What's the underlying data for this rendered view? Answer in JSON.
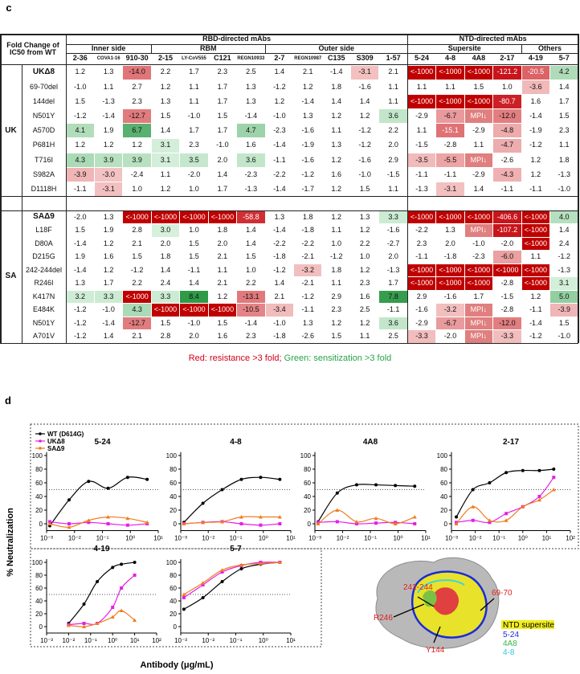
{
  "panel_c": {
    "label": "c",
    "corner": "Fold Change of IC50 from WT",
    "groups": [
      {
        "name": "RBD-directed mAbs",
        "subgroups": [
          {
            "name": "Inner side",
            "columns": [
              "2-36",
              "COVA1-16",
              "910-30"
            ]
          },
          {
            "name": "RBM",
            "columns": [
              "2-15",
              "LY-CoV555",
              "C121",
              "REGN10933"
            ]
          },
          {
            "name": "Outer side",
            "columns": [
              "2-7",
              "REGN10987",
              "C135",
              "S309",
              "1-57"
            ]
          }
        ]
      },
      {
        "name": "NTD-directed mAbs",
        "subgroups": [
          {
            "name": "Supersite",
            "columns": [
              "5-24",
              "4-8",
              "4A8",
              "2-17"
            ]
          },
          {
            "name": "Others",
            "columns": [
              "4-19",
              "5-7"
            ]
          }
        ]
      }
    ],
    "blocks": [
      {
        "name": "UK",
        "rows": [
          {
            "label": "UKΔ8",
            "cells": [
              "1.2",
              "1.3",
              "-14.0",
              "2.2",
              "1.7",
              "2.3",
              "2.5",
              "1.4",
              "2.1",
              "-1.4",
              "-3.1",
              "2.1",
              "<-1000",
              "<-1000",
              "<-1000",
              "-121.2",
              "-20.5",
              "4.2"
            ]
          },
          {
            "label": "69-70del",
            "cells": [
              "-1.0",
              "1.1",
              "2.7",
              "1.2",
              "1.1",
              "1.7",
              "1.3",
              "-1.2",
              "1.2",
              "1.8",
              "-1.6",
              "1.1",
              "1.1",
              "1.1",
              "1.5",
              "1.0",
              "-3.6",
              "1.4"
            ]
          },
          {
            "label": "144del",
            "cells": [
              "1.5",
              "-1.3",
              "2.3",
              "1.3",
              "1.1",
              "1.7",
              "1.3",
              "1.2",
              "-1.4",
              "1.4",
              "1.4",
              "1.1",
              "<-1000",
              "<-1000",
              "<-1000",
              "-80.7",
              "1.6",
              "1.7"
            ]
          },
          {
            "label": "N501Y",
            "cells": [
              "-1.2",
              "-1.4",
              "-12.7",
              "1.5",
              "-1.0",
              "1.5",
              "-1.4",
              "-1.0",
              "1.3",
              "1.2",
              "1.2",
              "3.6",
              "-2.9",
              "-6.7",
              "MPI↓",
              "-12.0",
              "-1.4",
              "1.5"
            ]
          },
          {
            "label": "A570D",
            "cells": [
              "4.1",
              "1.9",
              "6.7",
              "1.4",
              "1.7",
              "1.7",
              "4.7",
              "-2.3",
              "-1.6",
              "1.1",
              "-1.2",
              "2.2",
              "1.1",
              "-15.1",
              "-2.9",
              "-4.8",
              "-1.9",
              "2.3"
            ]
          },
          {
            "label": "P681H",
            "cells": [
              "1.2",
              "1.2",
              "1.2",
              "3.1",
              "2.3",
              "-1.0",
              "1.6",
              "-1.4",
              "-1.9",
              "1.3",
              "-1.2",
              "2.0",
              "-1.5",
              "-2.8",
              "1.1",
              "-4.7",
              "-1.2",
              "1.1"
            ]
          },
          {
            "label": "T716I",
            "cells": [
              "4.3",
              "3.9",
              "3.9",
              "3.1",
              "3.5",
              "2.0",
              "3.6",
              "-1.1",
              "-1.6",
              "1.2",
              "-1.6",
              "2.9",
              "-3.5",
              "-5.5",
              "MPI↓",
              "-2.6",
              "1.2",
              "1.8"
            ]
          },
          {
            "label": "S982A",
            "cells": [
              "-3.9",
              "-3.0",
              "-2.4",
              "1.1",
              "-2.0",
              "1.4",
              "-2.3",
              "-2.2",
              "-1.2",
              "1.6",
              "-1.0",
              "-1.5",
              "-1.1",
              "-1.1",
              "-2.9",
              "-4.3",
              "1.2",
              "-1.3"
            ]
          },
          {
            "label": "D1118H",
            "cells": [
              "-1.1",
              "-3.1",
              "1.0",
              "1.2",
              "1.0",
              "1.7",
              "-1.3",
              "-1.4",
              "-1.7",
              "1.2",
              "1.5",
              "1.1",
              "-1.3",
              "-3.1",
              "1.4",
              "-1.1",
              "-1.1",
              "-1.0"
            ]
          }
        ]
      },
      {
        "name": "SA",
        "rows": [
          {
            "label": "SAΔ9",
            "cells": [
              "-2.0",
              "1.3",
              "<-1000",
              "<-1000",
              "<-1000",
              "<-1000",
              "-58.8",
              "1.3",
              "1.8",
              "1.2",
              "1.3",
              "3.3",
              "<-1000",
              "<-1000",
              "<-1000",
              "-406.6",
              "<-1000",
              "4.0"
            ]
          },
          {
            "label": "L18F",
            "cells": [
              "1.5",
              "1.9",
              "2.8",
              "3.0",
              "1.0",
              "1.8",
              "1.4",
              "-1.4",
              "-1.8",
              "1.1",
              "1.2",
              "-1.6",
              "-2.2",
              "1.3",
              "MPI↓",
              "-107.2",
              "<-1000",
              "1.4"
            ]
          },
          {
            "label": "D80A",
            "cells": [
              "-1.4",
              "1.2",
              "2.1",
              "2.0",
              "1.5",
              "2.0",
              "1.4",
              "-2.2",
              "-2.2",
              "1.0",
              "2.2",
              "-2.7",
              "2.3",
              "2.0",
              "-1.0",
              "-2.0",
              "<-1000",
              "2.4"
            ]
          },
          {
            "label": "D215G",
            "cells": [
              "1.9",
              "1.6",
              "1.5",
              "1.8",
              "1.5",
              "2.1",
              "1.5",
              "-1.8",
              "-2.1",
              "-1.2",
              "1.0",
              "2.0",
              "-1.1",
              "-1.8",
              "-2.3",
              "-6.0",
              "1.1",
              "-1.2"
            ]
          },
          {
            "label": "242-244del",
            "cells": [
              "-1.4",
              "1.2",
              "-1.2",
              "1.4",
              "-1.1",
              "1.1",
              "1.0",
              "-1.2",
              "-3.2",
              "1.8",
              "1.2",
              "-1.3",
              "<-1000",
              "<-1000",
              "<-1000",
              "<-1000",
              "<-1000",
              "-1.3"
            ]
          },
          {
            "label": "R246I",
            "cells": [
              "1.3",
              "1.7",
              "2.2",
              "2.4",
              "1.4",
              "2.1",
              "2.2",
              "1.4",
              "-2.1",
              "1.1",
              "2.3",
              "1.7",
              "<-1000",
              "<-1000",
              "<-1000",
              "-2.8",
              "<-1000",
              "3.1"
            ]
          },
          {
            "label": "K417N",
            "cells": [
              "3.2",
              "3.3",
              "<-1000",
              "3.3",
              "8.4",
              "1.2",
              "-13.1",
              "2.1",
              "-1.2",
              "2.9",
              "1.6",
              "7.8",
              "2.9",
              "-1.6",
              "1.7",
              "-1.5",
              "1.2",
              "5.0"
            ]
          },
          {
            "label": "E484K",
            "cells": [
              "-1.2",
              "-1.0",
              "4.3",
              "<-1000",
              "<-1000",
              "<-1000",
              "-10.5",
              "-3.4",
              "-1.1",
              "2.3",
              "2.5",
              "-1.1",
              "-1.6",
              "-3.2",
              "MPI↓",
              "-2.8",
              "-1.1",
              "-3.9"
            ]
          },
          {
            "label": "N501Y",
            "cells": [
              "-1.2",
              "-1.4",
              "-12.7",
              "1.5",
              "-1.0",
              "1.5",
              "-1.4",
              "-1.0",
              "1.3",
              "1.2",
              "1.2",
              "3.6",
              "-2.9",
              "-6.7",
              "MPI↓",
              "-12.0",
              "-1.4",
              "1.5"
            ]
          },
          {
            "label": "A701V",
            "cells": [
              "-1.2",
              "1.4",
              "2.1",
              "2.8",
              "2.0",
              "1.6",
              "2.3",
              "-1.8",
              "-2.6",
              "1.5",
              "1.1",
              "2.5",
              "-3.3",
              "-2.0",
              "MPI↓",
              "-3.3",
              "-1.2",
              "-1.0"
            ]
          }
        ]
      }
    ],
    "note_red": "Red: resistance >3 fold;",
    "note_green": "Green: sensitization >3 fold"
  },
  "panel_d": {
    "label": "d",
    "y_label": "% Neutralization",
    "x_label": "Antibody (μg/mL)",
    "reference_line": 50
  },
  "chart_data": [
    {
      "type": "line",
      "title": "5-24",
      "log_x": true,
      "legend": "upper left",
      "x": [
        0.0013,
        0.0064,
        0.032,
        0.16,
        0.8,
        4
      ],
      "series": [
        {
          "name": "WT (D614G)",
          "color": "#000000",
          "values": [
            -3,
            35,
            62,
            52,
            68,
            65
          ]
        },
        {
          "name": "UKΔ8",
          "color": "#e61ee6",
          "values": [
            3,
            0,
            2,
            0,
            -2,
            0
          ]
        },
        {
          "name": "SAΔ9",
          "color": "#f07d1e",
          "values": [
            0,
            -5,
            5,
            10,
            8,
            2
          ]
        }
      ],
      "xlim": [
        0.001,
        10
      ],
      "xticks": [
        {
          "value": 0.001,
          "label": "10⁻³"
        },
        {
          "value": 0.01,
          "label": "10⁻²"
        },
        {
          "value": 0.1,
          "label": "10⁻¹"
        },
        {
          "value": 1,
          "label": "10⁰"
        },
        {
          "value": 10,
          "label": "10¹"
        }
      ],
      "ylim": [
        -10,
        105
      ],
      "yticks": [
        0,
        20,
        40,
        60,
        80,
        100
      ]
    },
    {
      "type": "line",
      "title": "4-8",
      "log_x": true,
      "x": [
        0.0013,
        0.0064,
        0.032,
        0.16,
        0.8,
        4
      ],
      "series": [
        {
          "name": "WT (D614G)",
          "color": "#000000",
          "values": [
            2,
            30,
            50,
            65,
            68,
            65
          ]
        },
        {
          "name": "UKΔ8",
          "color": "#e61ee6",
          "values": [
            0,
            2,
            3,
            0,
            -2,
            0
          ]
        },
        {
          "name": "SAΔ9",
          "color": "#f07d1e",
          "values": [
            0,
            2,
            3,
            10,
            10,
            10
          ]
        }
      ],
      "xlim": [
        0.001,
        10
      ],
      "xticks": [
        {
          "value": 0.001,
          "label": "10⁻³"
        },
        {
          "value": 0.01,
          "label": "10⁻²"
        },
        {
          "value": 0.1,
          "label": "10⁻¹"
        },
        {
          "value": 1,
          "label": "10⁰"
        },
        {
          "value": 10,
          "label": "10¹"
        }
      ],
      "ylim": [
        -10,
        105
      ],
      "yticks": [
        0,
        20,
        40,
        60,
        80,
        100
      ]
    },
    {
      "type": "line",
      "title": "4A8",
      "log_x": true,
      "x": [
        0.0013,
        0.0064,
        0.032,
        0.16,
        0.8,
        4
      ],
      "series": [
        {
          "name": "WT (D614G)",
          "color": "#000000",
          "values": [
            3,
            45,
            57,
            57,
            56,
            55
          ]
        },
        {
          "name": "UKΔ8",
          "color": "#e61ee6",
          "values": [
            2,
            3,
            0,
            1,
            2,
            0
          ]
        },
        {
          "name": "SAΔ9",
          "color": "#f07d1e",
          "values": [
            0,
            20,
            3,
            8,
            0,
            10
          ]
        }
      ],
      "xlim": [
        0.001,
        10
      ],
      "xticks": [
        {
          "value": 0.001,
          "label": "10⁻³"
        },
        {
          "value": 0.01,
          "label": "10⁻²"
        },
        {
          "value": 0.1,
          "label": "10⁻¹"
        },
        {
          "value": 1,
          "label": "10⁰"
        },
        {
          "value": 10,
          "label": "10¹"
        }
      ],
      "ylim": [
        -10,
        105
      ],
      "yticks": [
        0,
        20,
        40,
        60,
        80,
        100
      ]
    },
    {
      "type": "line",
      "title": "2-17",
      "log_x": true,
      "x": [
        0.0016,
        0.008,
        0.04,
        0.2,
        1,
        5,
        20
      ],
      "series": [
        {
          "name": "WT (D614G)",
          "color": "#000000",
          "values": [
            10,
            50,
            60,
            75,
            78,
            78,
            80
          ]
        },
        {
          "name": "UKΔ8",
          "color": "#e61ee6",
          "values": [
            2,
            5,
            2,
            15,
            25,
            40,
            68
          ]
        },
        {
          "name": "SAΔ9",
          "color": "#f07d1e",
          "values": [
            0,
            25,
            5,
            5,
            25,
            35,
            50
          ]
        }
      ],
      "xlim": [
        0.001,
        100
      ],
      "xticks": [
        {
          "value": 0.001,
          "label": "10⁻³"
        },
        {
          "value": 0.01,
          "label": "10⁻²"
        },
        {
          "value": 0.1,
          "label": "10⁻¹"
        },
        {
          "value": 1,
          "label": "10⁰"
        },
        {
          "value": 10,
          "label": "10¹"
        },
        {
          "value": 100,
          "label": "10²"
        }
      ],
      "ylim": [
        -10,
        105
      ],
      "yticks": [
        0,
        20,
        40,
        60,
        80,
        100
      ]
    },
    {
      "type": "line",
      "title": "4-19",
      "log_x": true,
      "x": [
        0.01,
        0.05,
        0.2,
        1,
        2.5,
        10
      ],
      "series": [
        {
          "name": "WT (D614G)",
          "color": "#000000",
          "values": [
            5,
            35,
            70,
            92,
            97,
            100
          ]
        },
        {
          "name": "UKΔ8",
          "color": "#e61ee6",
          "values": [
            3,
            5,
            5,
            30,
            60,
            80
          ]
        },
        {
          "name": "SAΔ9",
          "color": "#f07d1e",
          "values": [
            2,
            0,
            5,
            15,
            25,
            10
          ]
        }
      ],
      "xlim": [
        0.001,
        100
      ],
      "xticks": [
        {
          "value": 0.001,
          "label": "10⁻³"
        },
        {
          "value": 0.01,
          "label": "10⁻²"
        },
        {
          "value": 0.1,
          "label": "10⁻¹"
        },
        {
          "value": 1,
          "label": "10⁰"
        },
        {
          "value": 10,
          "label": "10¹"
        },
        {
          "value": 100,
          "label": "10²"
        }
      ],
      "ylim": [
        -10,
        105
      ],
      "yticks": [
        0,
        20,
        40,
        60,
        80,
        100
      ]
    },
    {
      "type": "line",
      "title": "5-7",
      "log_x": true,
      "x": [
        0.0013,
        0.0064,
        0.032,
        0.16,
        0.8,
        4
      ],
      "series": [
        {
          "name": "WT (D614G)",
          "color": "#000000",
          "values": [
            27,
            45,
            70,
            90,
            97,
            100
          ]
        },
        {
          "name": "UKΔ8",
          "color": "#e61ee6",
          "values": [
            45,
            65,
            85,
            95,
            100,
            100
          ]
        },
        {
          "name": "SAΔ9",
          "color": "#f07d1e",
          "values": [
            50,
            68,
            88,
            96,
            98,
            100
          ]
        }
      ],
      "xlim": [
        0.001,
        10
      ],
      "xticks": [
        {
          "value": 0.001,
          "label": "10⁻³"
        },
        {
          "value": 0.01,
          "label": "10⁻²"
        },
        {
          "value": 0.1,
          "label": "10⁻¹"
        },
        {
          "value": 1,
          "label": "10⁰"
        },
        {
          "value": 10,
          "label": "10¹"
        }
      ],
      "ylim": [
        -10,
        105
      ],
      "yticks": [
        0,
        20,
        40,
        60,
        80,
        100
      ]
    }
  ],
  "structure": {
    "labels": [
      "242-244",
      "69-70",
      "R246",
      "Y144"
    ],
    "legend": [
      "NTD supersite",
      "5-24",
      "4A8",
      "4-8"
    ]
  }
}
